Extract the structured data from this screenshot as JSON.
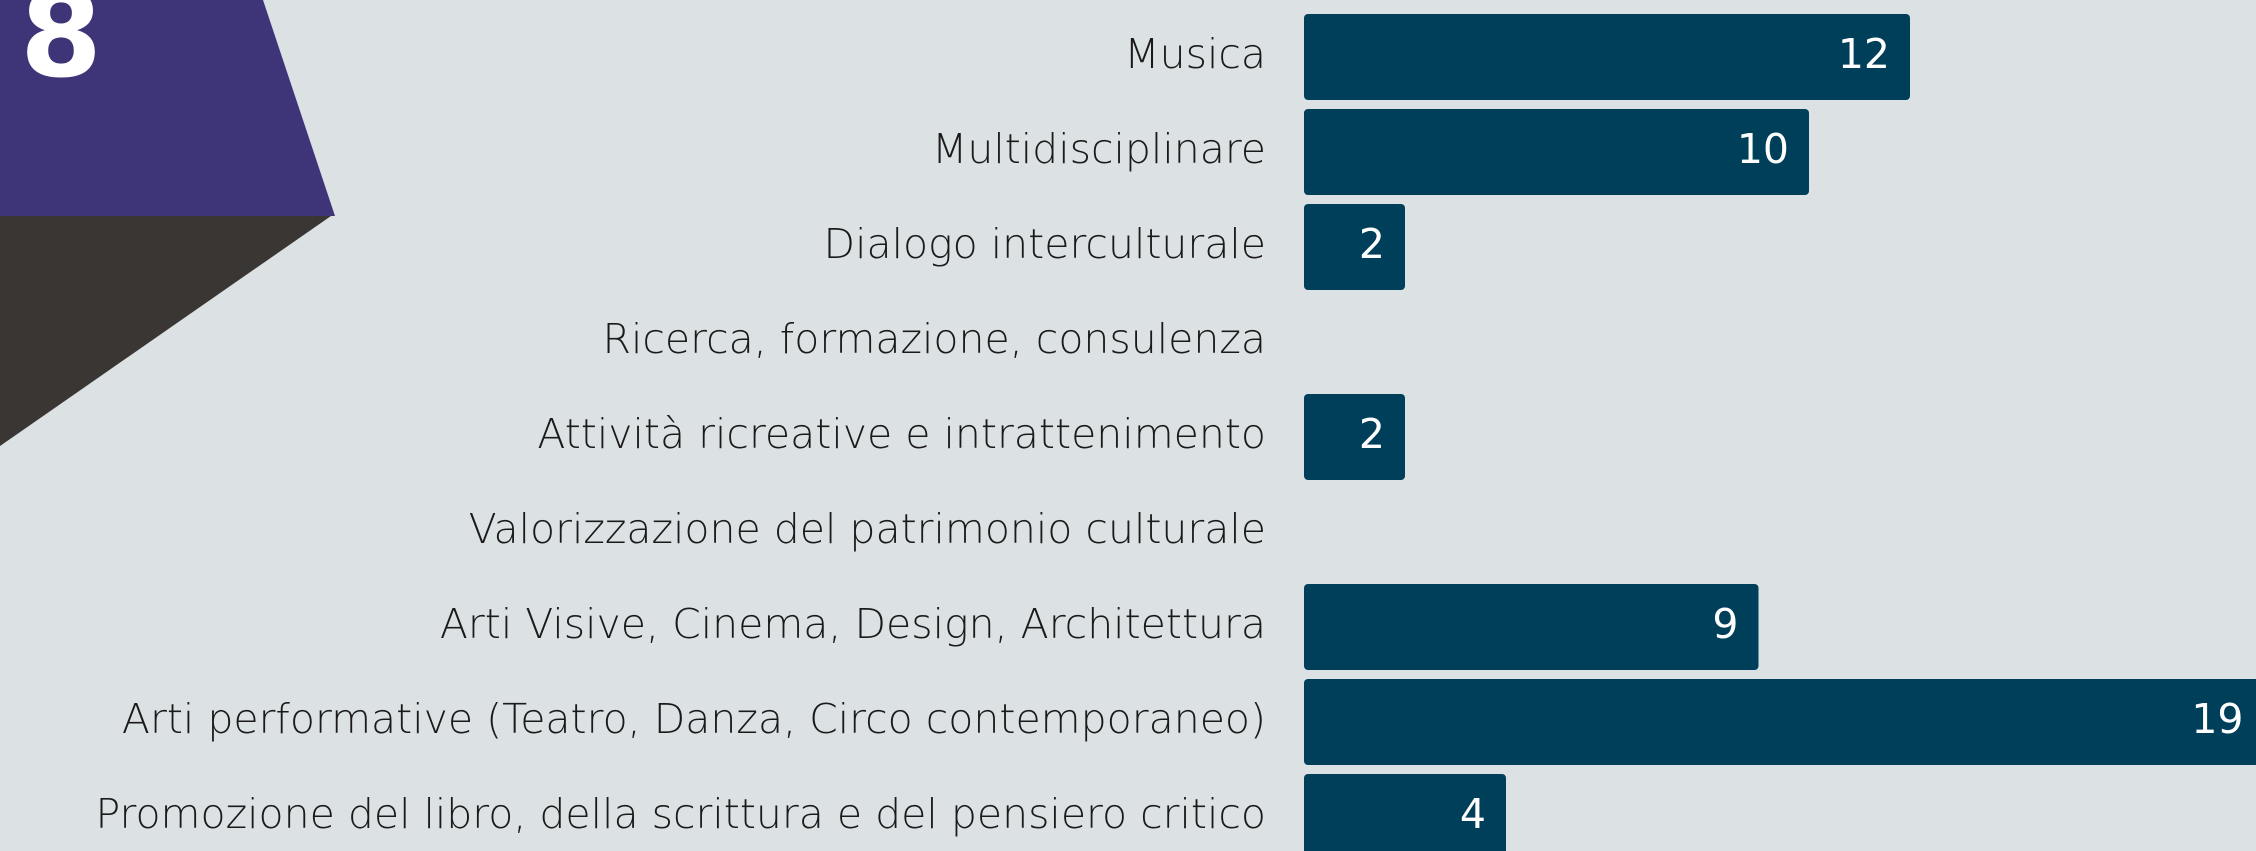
{
  "badge": "8",
  "chart_data": {
    "type": "bar",
    "orientation": "horizontal",
    "categories": [
      "Musica",
      "Multidisciplinare",
      "Dialogo interculturale",
      "Ricerca, formazione, consulenza",
      "Attività ricreative e intrattenimento",
      "Valorizzazione del patrimonio culturale",
      "Arti Visive, Cinema, Design, Architettura",
      "Arti performative (Teatro, Danza, Circo contemporaneo)",
      "Promozione del libro, della scrittura e del pensiero critico"
    ],
    "values": [
      12,
      10,
      2,
      0,
      2,
      0,
      9,
      19,
      4
    ],
    "color": "#003f5a"
  }
}
